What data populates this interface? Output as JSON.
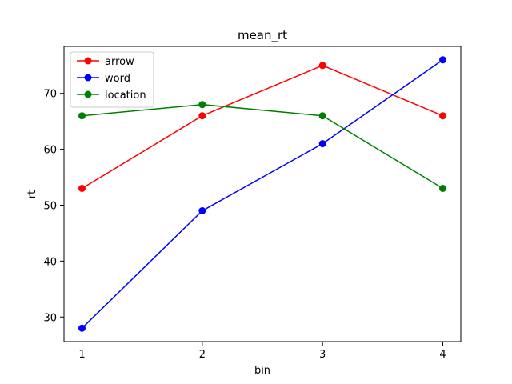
{
  "chart_data": {
    "type": "line",
    "title": "mean_rt",
    "xlabel": "bin",
    "ylabel": "rt",
    "x": [
      1,
      2,
      3,
      4
    ],
    "xticks": [
      "1",
      "2",
      "3",
      "4"
    ],
    "yticks": [
      30,
      40,
      50,
      60,
      70
    ],
    "xlim": [
      0.85,
      4.15
    ],
    "ylim": [
      25.6,
      78.4
    ],
    "grid": false,
    "legend_position": "top-left",
    "series": [
      {
        "name": "arrow",
        "color": "#ff0000",
        "values": [
          53,
          66,
          75,
          66
        ]
      },
      {
        "name": "word",
        "color": "#0000ff",
        "values": [
          28,
          49,
          61,
          76
        ]
      },
      {
        "name": "location",
        "color": "#008000",
        "values": [
          66,
          68,
          66,
          53
        ]
      }
    ]
  }
}
